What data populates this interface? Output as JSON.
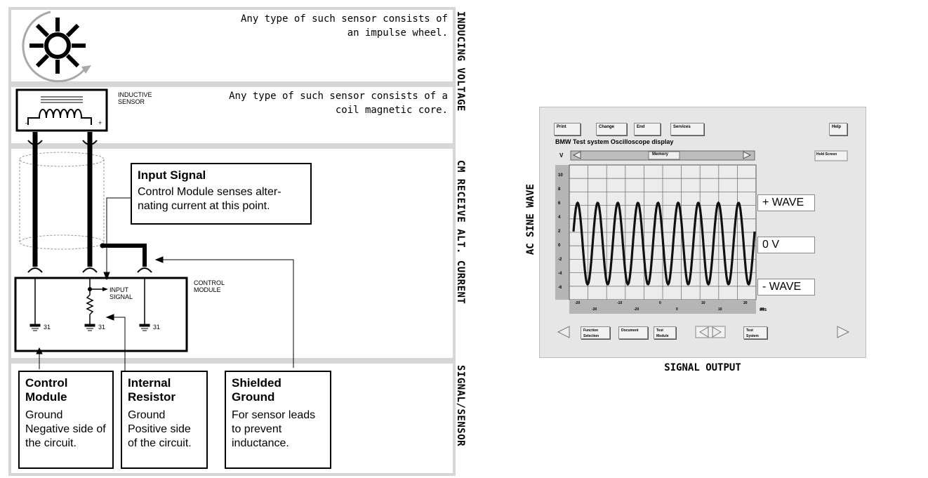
{
  "panels": {
    "wheel_caption": "Any type of such sensor consists of an impulse wheel.",
    "coil_caption": "Any type of such sensor consists of a coil magnetic core.",
    "sensor_label": "INDUCTIVE SENSOR",
    "control_module_label": "CONTROL MODULE",
    "input_signal_small": "INPUT SIGNAL",
    "ground_number": "31"
  },
  "side_labels": [
    "INDUCING VOLTAGE",
    "CM RECEIVE ALT. CURRENT",
    "SIGNAL/SENSOR"
  ],
  "callouts": {
    "input_signal": {
      "title": "Input Signal",
      "body": "Control Module senses alter-nating current at this point."
    },
    "control_module": {
      "title": "Control Module",
      "body": "Ground Negative side of the circuit."
    },
    "internal_resistor": {
      "title": "Internal Resistor",
      "body": "Ground Positive side of the circuit."
    },
    "shielded_ground": {
      "title": "Shielded Ground",
      "body": "For sensor leads to prevent inductance."
    }
  },
  "scope": {
    "buttons_top": [
      "Print",
      "Change",
      "End",
      "Services",
      "Help"
    ],
    "title": "BMW Test system Oscilloscope display",
    "memory": "Memory",
    "hold_screen": "Hold Screen",
    "v_unit": "V",
    "ms_unit": "ms",
    "y_ticks": [
      "10",
      "8",
      "6",
      "4",
      "2",
      "0",
      "-2",
      "-4",
      "-6"
    ],
    "x_ticks_top": [
      "-20",
      "-10",
      "0",
      "10",
      "20"
    ],
    "x_ticks_bottom": [
      "-30",
      "-20",
      "0",
      "10",
      "20"
    ],
    "buttons_bottom": [
      "Function Selection",
      "Document",
      "Test Module",
      "Test System"
    ],
    "wave_labels": {
      "plus": "+ WAVE",
      "zero": "0 V",
      "minus": "- WAVE"
    }
  },
  "captions": {
    "signal_output": "SIGNAL OUTPUT",
    "ac_sine": "AC SINE WAVE"
  }
}
